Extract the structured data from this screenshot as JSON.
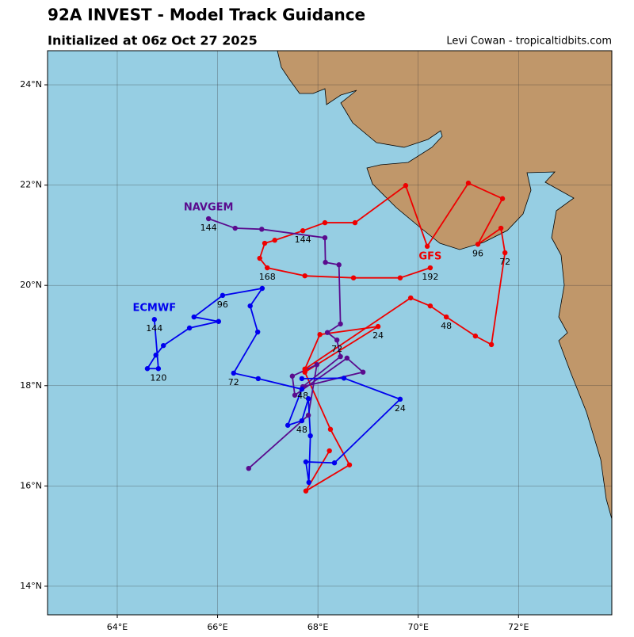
{
  "chart_data": {
    "type": "line",
    "title": "92A INVEST - Model Track Guidance",
    "subtitle": "Initialized at 06z Oct 27 2025",
    "credit": "Levi Cowan - tropicaltidbits.com",
    "xlim": [
      62.61,
      73.86
    ],
    "ylim": [
      13.43,
      24.68
    ],
    "xticks": [
      {
        "value": 64,
        "label": "64°E"
      },
      {
        "value": 66,
        "label": "66°E"
      },
      {
        "value": 68,
        "label": "68°E"
      },
      {
        "value": 70,
        "label": "70°E"
      },
      {
        "value": 72,
        "label": "72°E"
      }
    ],
    "yticks": [
      {
        "value": 14,
        "label": "14°N"
      },
      {
        "value": 16,
        "label": "16°N"
      },
      {
        "value": 18,
        "label": "18°N"
      },
      {
        "value": 20,
        "label": "20°N"
      },
      {
        "value": 22,
        "label": "22°N"
      },
      {
        "value": 24,
        "label": "24°N"
      }
    ],
    "grid": true,
    "series": [
      {
        "name": "GFS",
        "color": "#ee0000",
        "x": [
          68.23,
          67.76,
          68.63,
          68.25,
          67.74,
          69.2,
          68.04,
          67.74,
          69.85,
          70.24,
          70.56,
          71.14,
          71.46,
          71.73,
          71.65,
          71.19,
          71.68,
          71.0,
          70.18,
          69.75,
          68.74,
          68.14,
          67.7,
          67.14,
          66.94,
          66.84,
          66.99,
          67.74,
          68.71,
          69.64,
          70.24
        ],
        "values": [
          16.7,
          15.9,
          16.42,
          17.13,
          18.27,
          19.18,
          19.02,
          18.33,
          19.75,
          19.59,
          19.37,
          18.99,
          18.82,
          20.65,
          21.14,
          20.82,
          21.73,
          22.04,
          20.78,
          21.99,
          21.25,
          21.25,
          21.09,
          20.9,
          20.84,
          20.54,
          20.35,
          20.19,
          20.15,
          20.15,
          20.35
        ],
        "point_labels": [
          null,
          null,
          null,
          null,
          null,
          24,
          null,
          null,
          null,
          null,
          48,
          null,
          null,
          72,
          null,
          96,
          null,
          null,
          null,
          null,
          null,
          null,
          144,
          null,
          null,
          null,
          168,
          null,
          null,
          null,
          192
        ]
      },
      {
        "name": "NAVGEM",
        "color": "#5a0b8e",
        "x": [
          66.62,
          67.81,
          67.98,
          67.49,
          67.54,
          68.58,
          68.9,
          67.7,
          68.45,
          68.38,
          68.19,
          68.45,
          68.42,
          68.15,
          68.14,
          66.88,
          66.35,
          65.82
        ],
        "values": [
          16.35,
          17.41,
          18.42,
          18.19,
          17.81,
          18.55,
          18.27,
          17.98,
          18.58,
          18.91,
          19.06,
          19.23,
          20.41,
          20.46,
          20.95,
          21.12,
          21.14,
          21.33
        ],
        "point_labels": [
          null,
          null,
          null,
          null,
          null,
          null,
          null,
          48,
          null,
          72,
          null,
          null,
          null,
          null,
          null,
          null,
          null,
          144
        ]
      },
      {
        "name": "ECMWF",
        "color": "#0000ee",
        "x": [
          67.68,
          68.52,
          69.64,
          68.33,
          67.76,
          67.82,
          67.85,
          67.81,
          67.68,
          67.4,
          67.68,
          66.81,
          66.32,
          66.8,
          66.65,
          66.89,
          66.1,
          65.53,
          66.02,
          65.44,
          64.92,
          64.77,
          64.6,
          64.82,
          64.74
        ],
        "values": [
          18.14,
          18.15,
          17.73,
          16.46,
          16.48,
          16.07,
          17.0,
          17.74,
          17.3,
          17.21,
          17.93,
          18.14,
          18.25,
          19.07,
          19.59,
          19.94,
          19.8,
          19.37,
          19.28,
          19.15,
          18.8,
          18.61,
          18.34,
          18.34,
          19.32
        ],
        "point_labels": [
          null,
          null,
          24,
          null,
          null,
          null,
          null,
          null,
          48,
          null,
          null,
          null,
          72,
          null,
          null,
          null,
          96,
          null,
          null,
          null,
          null,
          null,
          null,
          120,
          144
        ]
      }
    ]
  }
}
